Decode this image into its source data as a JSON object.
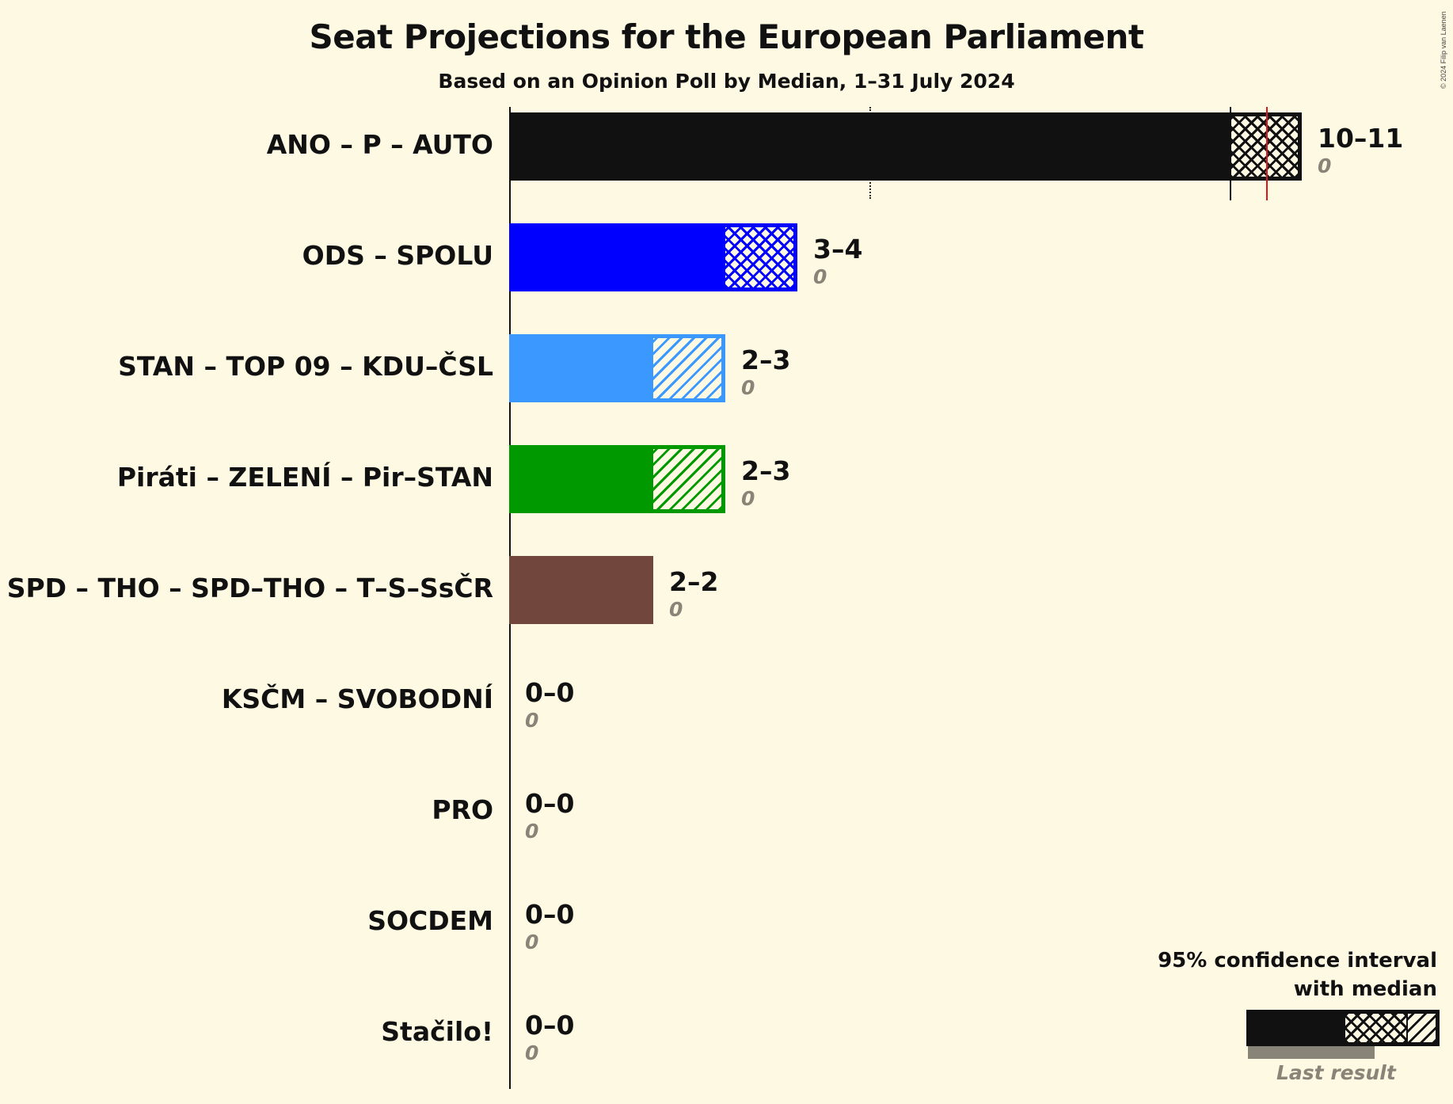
{
  "header": {
    "title": "Seat Projections for the European Parliament",
    "subtitle": "Based on an Opinion Poll by Median, 1–31 July 2024",
    "copyright": "© 2024 Filip van Laenen"
  },
  "parties": [
    {
      "name": "ANO – P – AUTO",
      "range": "10–11",
      "last": "0",
      "low": 10,
      "high": 11,
      "median": 10.5,
      "color": "#111111",
      "pattern": "cross"
    },
    {
      "name": "ODS – SPOLU",
      "range": "3–4",
      "last": "0",
      "low": 3,
      "high": 4,
      "color": "#0000FF",
      "pattern": "cross"
    },
    {
      "name": "STAN – TOP 09 – KDU–ČSL",
      "range": "2–3",
      "last": "0",
      "low": 2,
      "high": 3,
      "color": "#3A98FF",
      "pattern": "diag"
    },
    {
      "name": "Piráti – ZELENÍ – Pir–STAN",
      "range": "2–3",
      "last": "0",
      "low": 2,
      "high": 3,
      "color": "#009900",
      "pattern": "diag"
    },
    {
      "name": "SPD – THO – SPD–THO – T–S–SsČR",
      "range": "2–2",
      "last": "0",
      "low": 2,
      "high": 2,
      "color": "#70463D",
      "pattern": "none"
    },
    {
      "name": "KSČM – SVOBODNÍ",
      "range": "0–0",
      "last": "0",
      "low": 0,
      "high": 0,
      "color": "#111111",
      "pattern": "none"
    },
    {
      "name": "PRO",
      "range": "0–0",
      "last": "0",
      "low": 0,
      "high": 0,
      "color": "#111111",
      "pattern": "none"
    },
    {
      "name": "SOCDEM",
      "range": "0–0",
      "last": "0",
      "low": 0,
      "high": 0,
      "color": "#111111",
      "pattern": "none"
    },
    {
      "name": "Stačilo!",
      "range": "0–0",
      "last": "0",
      "low": 0,
      "high": 0,
      "color": "#111111",
      "pattern": "none"
    }
  ],
  "legend": {
    "line1": "95% confidence interval",
    "line2": "with median",
    "last_result": "Last result"
  },
  "chart_data": {
    "type": "bar",
    "orientation": "horizontal",
    "title": "Seat Projections for the European Parliament",
    "subtitle": "Based on an Opinion Poll by Median, 1–31 July 2024",
    "categories": [
      "ANO – P – AUTO",
      "ODS – SPOLU",
      "STAN – TOP 09 – KDU–ČSL",
      "Piráti – ZELENÍ – Pir–STAN",
      "SPD – THO – SPD–THO – T–S–SsČR",
      "KSČM – SVOBODNÍ",
      "PRO",
      "SOCDEM",
      "Stačilo!"
    ],
    "series": [
      {
        "name": "95% CI low",
        "values": [
          10,
          3,
          2,
          2,
          2,
          0,
          0,
          0,
          0
        ]
      },
      {
        "name": "95% CI high",
        "values": [
          11,
          4,
          3,
          3,
          2,
          0,
          0,
          0,
          0
        ]
      },
      {
        "name": "Last result",
        "values": [
          0,
          0,
          0,
          0,
          0,
          0,
          0,
          0,
          0
        ]
      }
    ],
    "median_markers": {
      "ANO – P – AUTO": 10.5
    },
    "gridlines": [
      5
    ],
    "xlim": [
      0,
      11
    ],
    "xlabel": "",
    "ylabel": "",
    "legend": [
      "95% confidence interval with median",
      "Last result"
    ],
    "legend_position": "bottom-right"
  }
}
